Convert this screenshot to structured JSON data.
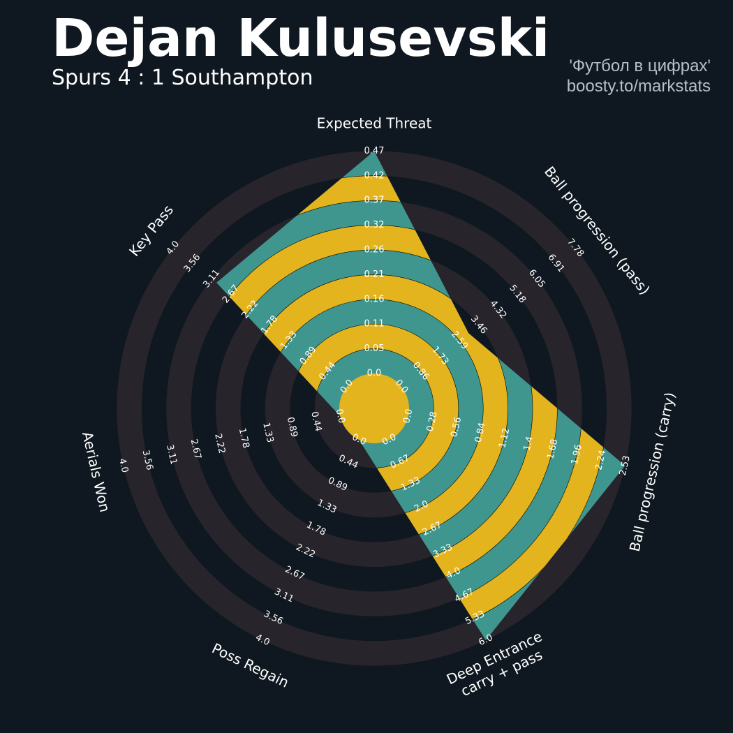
{
  "header": {
    "title": "Dejan Kulusevski",
    "subtitle": "Spurs 4 : 1 Southampton",
    "credit_line1": "'Футбол в цифрах'",
    "credit_line2": "boosty.to/markstats"
  },
  "colors": {
    "background": "#0f1820",
    "ring_dark": "#28242b",
    "fill_teal": "#3f968f",
    "fill_gold": "#e3b41e",
    "text": "#ffffff",
    "credit": "#b9bfc6"
  },
  "chart_data": {
    "type": "radar",
    "params": [
      {
        "label": "Expected Threat",
        "ticks": [
          "0.0",
          "0.05",
          "0.11",
          "0.16",
          "0.21",
          "0.26",
          "0.32",
          "0.37",
          "0.42",
          "0.47"
        ],
        "max": 0.47,
        "value": 0.47
      },
      {
        "label": "Ball progression (pass)",
        "ticks": [
          "0.0",
          "0.86",
          "1.73",
          "2.59",
          "3.46",
          "4.32",
          "5.18",
          "6.05",
          "6.91",
          "7.78"
        ],
        "max": 7.78,
        "value": 3.0
      },
      {
        "label": "Ball progression (carry)",
        "ticks": [
          "0.0",
          "0.28",
          "0.56",
          "0.84",
          "1.12",
          "1.4",
          "1.68",
          "1.96",
          "2.24",
          "2.53"
        ],
        "max": 2.53,
        "value": 2.53
      },
      {
        "label": "Deep Entrance\ncarry + pass",
        "ticks": [
          "0.0",
          "0.67",
          "1.33",
          "2.0",
          "2.67",
          "3.33",
          "4.0",
          "4.67",
          "5.33",
          "6.0"
        ],
        "max": 6.0,
        "value": 6.0
      },
      {
        "label": "Poss Regain",
        "ticks": [
          "0.0",
          "0.44",
          "0.89",
          "1.33",
          "1.78",
          "2.22",
          "2.67",
          "3.11",
          "3.56",
          "4.0"
        ],
        "max": 4.0,
        "value": 0
      },
      {
        "label": "Aerials Won",
        "ticks": [
          "0.0",
          "0.44",
          "0.89",
          "1.33",
          "1.78",
          "2.22",
          "2.67",
          "3.11",
          "3.56",
          "4.0"
        ],
        "max": 4.0,
        "value": 0
      },
      {
        "label": "Key Pass",
        "ticks": [
          "0.0",
          "0.44",
          "0.89",
          "1.33",
          "1.78",
          "2.22",
          "2.67",
          "3.11",
          "3.56",
          "4.0"
        ],
        "max": 4.0,
        "value": 3.0
      }
    ]
  }
}
